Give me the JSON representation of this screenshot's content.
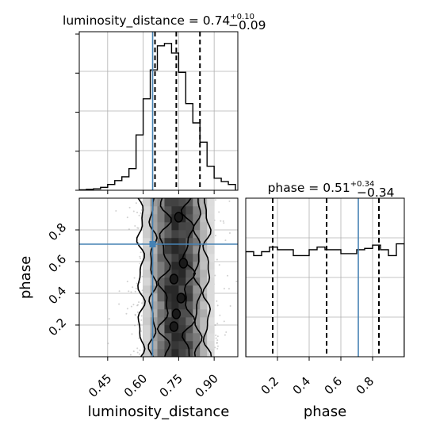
{
  "chart_data": {
    "type": "corner",
    "params": [
      "luminosity_distance",
      "phase"
    ],
    "truth": {
      "luminosity_distance": 0.64,
      "phase": 0.71
    },
    "truth_color": "#4682b4",
    "grid": true,
    "ticks": {
      "luminosity_distance": [
        "0.45",
        "0.60",
        "0.75",
        "0.90"
      ],
      "phase": [
        "0.2",
        "0.4",
        "0.6",
        "0.8"
      ]
    },
    "panels": [
      {
        "id": "hist-luminosity_distance",
        "type": "step-histogram",
        "param": "luminosity_distance",
        "title": "luminosity_distance = 0.74",
        "title_sup": "+0.10",
        "title_sub": "−0.09",
        "xlim": [
          0.33,
          1.0
        ],
        "quantiles": [
          0.65,
          0.74,
          0.84
        ],
        "bin_edges": [
          0.33,
          0.36,
          0.39,
          0.42,
          0.45,
          0.48,
          0.51,
          0.54,
          0.57,
          0.6,
          0.63,
          0.66,
          0.69,
          0.72,
          0.75,
          0.78,
          0.81,
          0.84,
          0.87,
          0.9,
          0.93,
          0.96,
          0.99
        ],
        "counts": [
          1,
          2,
          3,
          6,
          12,
          20,
          28,
          45,
          115,
          190,
          250,
          300,
          305,
          285,
          245,
          180,
          140,
          100,
          50,
          25,
          18,
          12
        ]
      },
      {
        "id": "hist-phase",
        "type": "step-histogram",
        "param": "phase",
        "title": "phase = 0.51",
        "title_sup": "+0.34",
        "title_sub": "−0.34",
        "xlim": [
          0.0,
          1.0
        ],
        "quantiles": [
          0.17,
          0.51,
          0.84
        ],
        "bin_edges": [
          0.0,
          0.05,
          0.1,
          0.15,
          0.2,
          0.25,
          0.3,
          0.35,
          0.4,
          0.45,
          0.5,
          0.55,
          0.6,
          0.65,
          0.7,
          0.75,
          0.8,
          0.85,
          0.9,
          0.95,
          1.0
        ],
        "counts": [
          160,
          154,
          160,
          167,
          163,
          163,
          154,
          154,
          163,
          167,
          163,
          163,
          157,
          157,
          163,
          165,
          170,
          163,
          154,
          172
        ]
      },
      {
        "id": "2d-phase-vs-luminosity_distance",
        "type": "density-2d",
        "x": "luminosity_distance",
        "y": "phase",
        "xlim": [
          0.33,
          1.0
        ],
        "ylim": [
          0.0,
          1.0
        ],
        "contour_points": [
          {
            "ld": 0.59,
            "ph": 0.5,
            "level": 1
          },
          {
            "ld": 0.87,
            "ph": 0.5,
            "level": 1
          },
          {
            "ld": 0.64,
            "ph": 0.5,
            "level": 2
          },
          {
            "ld": 0.83,
            "ph": 0.5,
            "level": 2
          },
          {
            "ld": 0.69,
            "ph": 0.5,
            "level": 3
          },
          {
            "ld": 0.79,
            "ph": 0.5,
            "level": 3
          }
        ],
        "peaks": [
          {
            "ld": 0.75,
            "ph": 0.88
          },
          {
            "ld": 0.77,
            "ph": 0.59
          },
          {
            "ld": 0.73,
            "ph": 0.49
          },
          {
            "ld": 0.76,
            "ph": 0.37
          },
          {
            "ld": 0.74,
            "ph": 0.27
          },
          {
            "ld": 0.73,
            "ph": 0.19
          }
        ]
      }
    ],
    "axis_labels": {
      "x": [
        "luminosity_distance",
        "phase"
      ],
      "y": [
        "phase"
      ]
    }
  }
}
